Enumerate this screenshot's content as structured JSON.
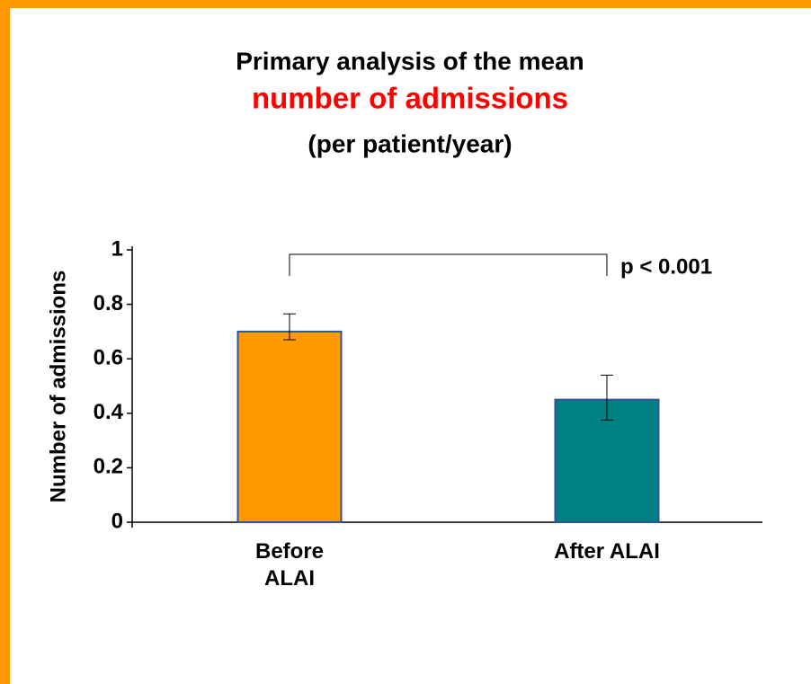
{
  "chart_data": {
    "type": "bar",
    "title": "Primary analysis of the mean",
    "title_highlight": "number of admissions",
    "subtitle": "(per patient/year)",
    "ylabel": "Number of admissions",
    "categories": [
      "Before\nALAI",
      "After ALAI"
    ],
    "values": [
      0.7,
      0.45
    ],
    "error_plus": [
      0.065,
      0.09
    ],
    "error_minus": [
      0.03,
      0.075
    ],
    "colors": [
      "#ff9900",
      "#008080"
    ],
    "edge_color": "#2f5597",
    "ylim": [
      0,
      1
    ],
    "yticks": [
      0,
      0.2,
      0.4,
      0.6,
      0.8,
      1
    ],
    "annotation": "p < 0.001"
  }
}
